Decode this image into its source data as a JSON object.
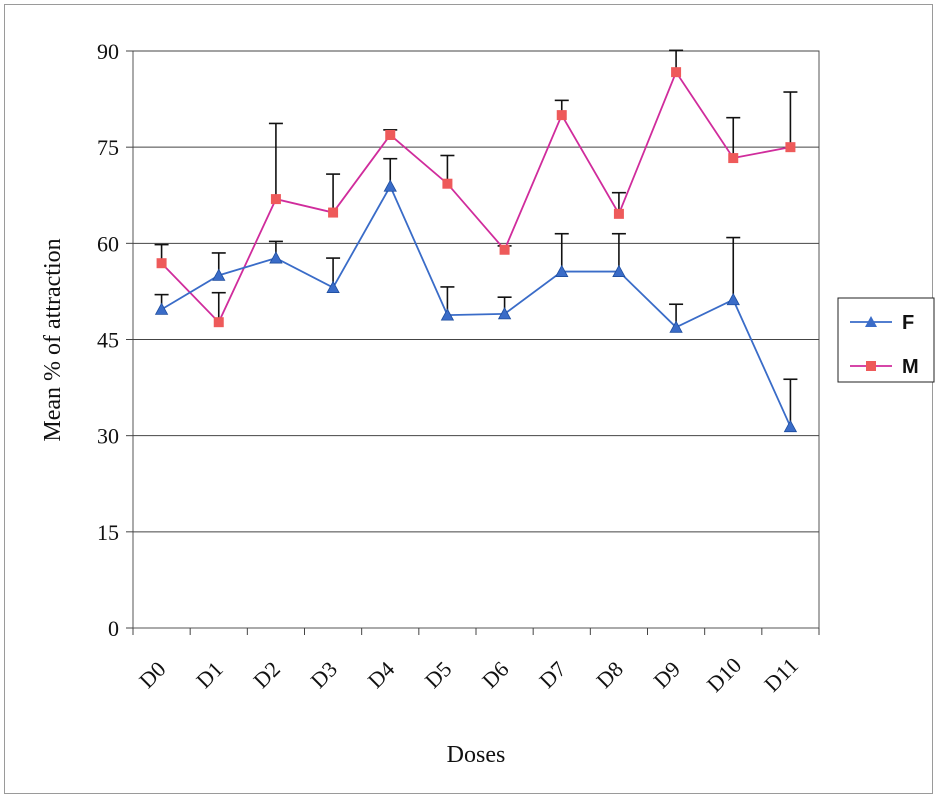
{
  "chart_data": {
    "type": "line",
    "title": "",
    "xlabel": "Doses",
    "ylabel": "Mean % of attraction",
    "categories": [
      "D0",
      "D1",
      "D2",
      "D3",
      "D4",
      "D5",
      "D6",
      "D7",
      "D8",
      "D9",
      "D10",
      "D11"
    ],
    "ylim": [
      0,
      90
    ],
    "yticks": [
      0,
      15,
      30,
      45,
      60,
      75,
      90
    ],
    "grid": "horizontal",
    "legend_position": "right",
    "series": [
      {
        "name": "F",
        "color": "#3a6cc8",
        "marker": "triangle",
        "values": [
          49.7,
          55.0,
          57.7,
          53.1,
          68.9,
          48.8,
          49.0,
          55.6,
          55.6,
          46.9,
          51.2,
          31.4
        ],
        "error_plus": [
          2.3,
          3.5,
          2.6,
          4.6,
          4.3,
          4.4,
          2.6,
          5.9,
          5.9,
          3.6,
          9.7,
          7.4
        ]
      },
      {
        "name": "M",
        "color": "#d02c9c",
        "marker_color": "#ee5a5a",
        "marker": "square",
        "values": [
          56.9,
          47.7,
          66.9,
          64.8,
          76.9,
          69.3,
          59.0,
          80.0,
          64.6,
          86.7,
          73.3,
          75.0
        ],
        "error_plus": [
          2.9,
          4.6,
          11.8,
          6.0,
          0.8,
          4.4,
          0.6,
          2.3,
          3.3,
          3.4,
          6.3,
          8.6
        ]
      }
    ]
  }
}
